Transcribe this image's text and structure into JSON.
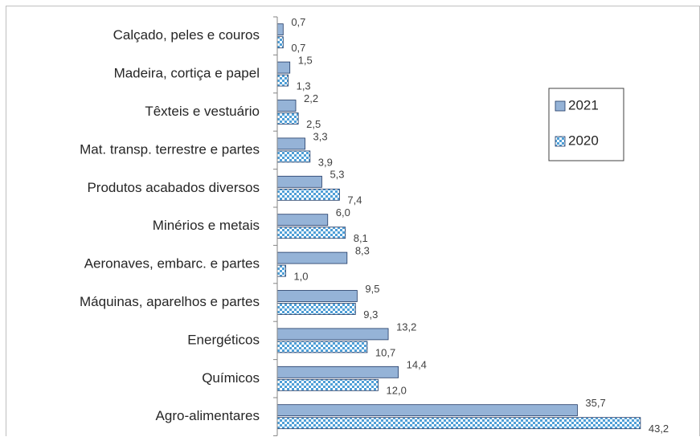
{
  "chart_data": {
    "type": "bar",
    "orientation": "horizontal",
    "categories": [
      "Calçado, peles e couros",
      "Madeira, cortiça e papel",
      "Têxteis e vestuário",
      "Mat. transp. terrestre e partes",
      "Produtos acabados diversos",
      "Minérios e metais",
      "Aeronaves, embarc. e partes",
      "Máquinas, aparelhos e partes",
      "Energéticos",
      "Químicos",
      "Agro-alimentares"
    ],
    "series": [
      {
        "name": "2021",
        "color": "#95b3d7",
        "values": [
          0.7,
          1.5,
          2.2,
          3.3,
          5.3,
          6.0,
          8.3,
          9.5,
          13.2,
          14.4,
          35.7
        ],
        "value_labels": [
          "0,7",
          "1,5",
          "2,2",
          "3,3",
          "5,3",
          "6,0",
          "8,3",
          "9,5",
          "13,2",
          "14,4",
          "35,7"
        ]
      },
      {
        "name": "2020",
        "color": "#4f9fd7",
        "pattern": "checker",
        "values": [
          0.7,
          1.3,
          2.5,
          3.9,
          7.4,
          8.1,
          1.0,
          9.3,
          10.7,
          12.0,
          43.2
        ],
        "value_labels": [
          "0,7",
          "1,3",
          "2,5",
          "3,9",
          "7,4",
          "8,1",
          "1,0",
          "9,3",
          "10,7",
          "12,0",
          "43,2"
        ]
      }
    ],
    "xlim": [
      0,
      50
    ],
    "legend": "right"
  }
}
